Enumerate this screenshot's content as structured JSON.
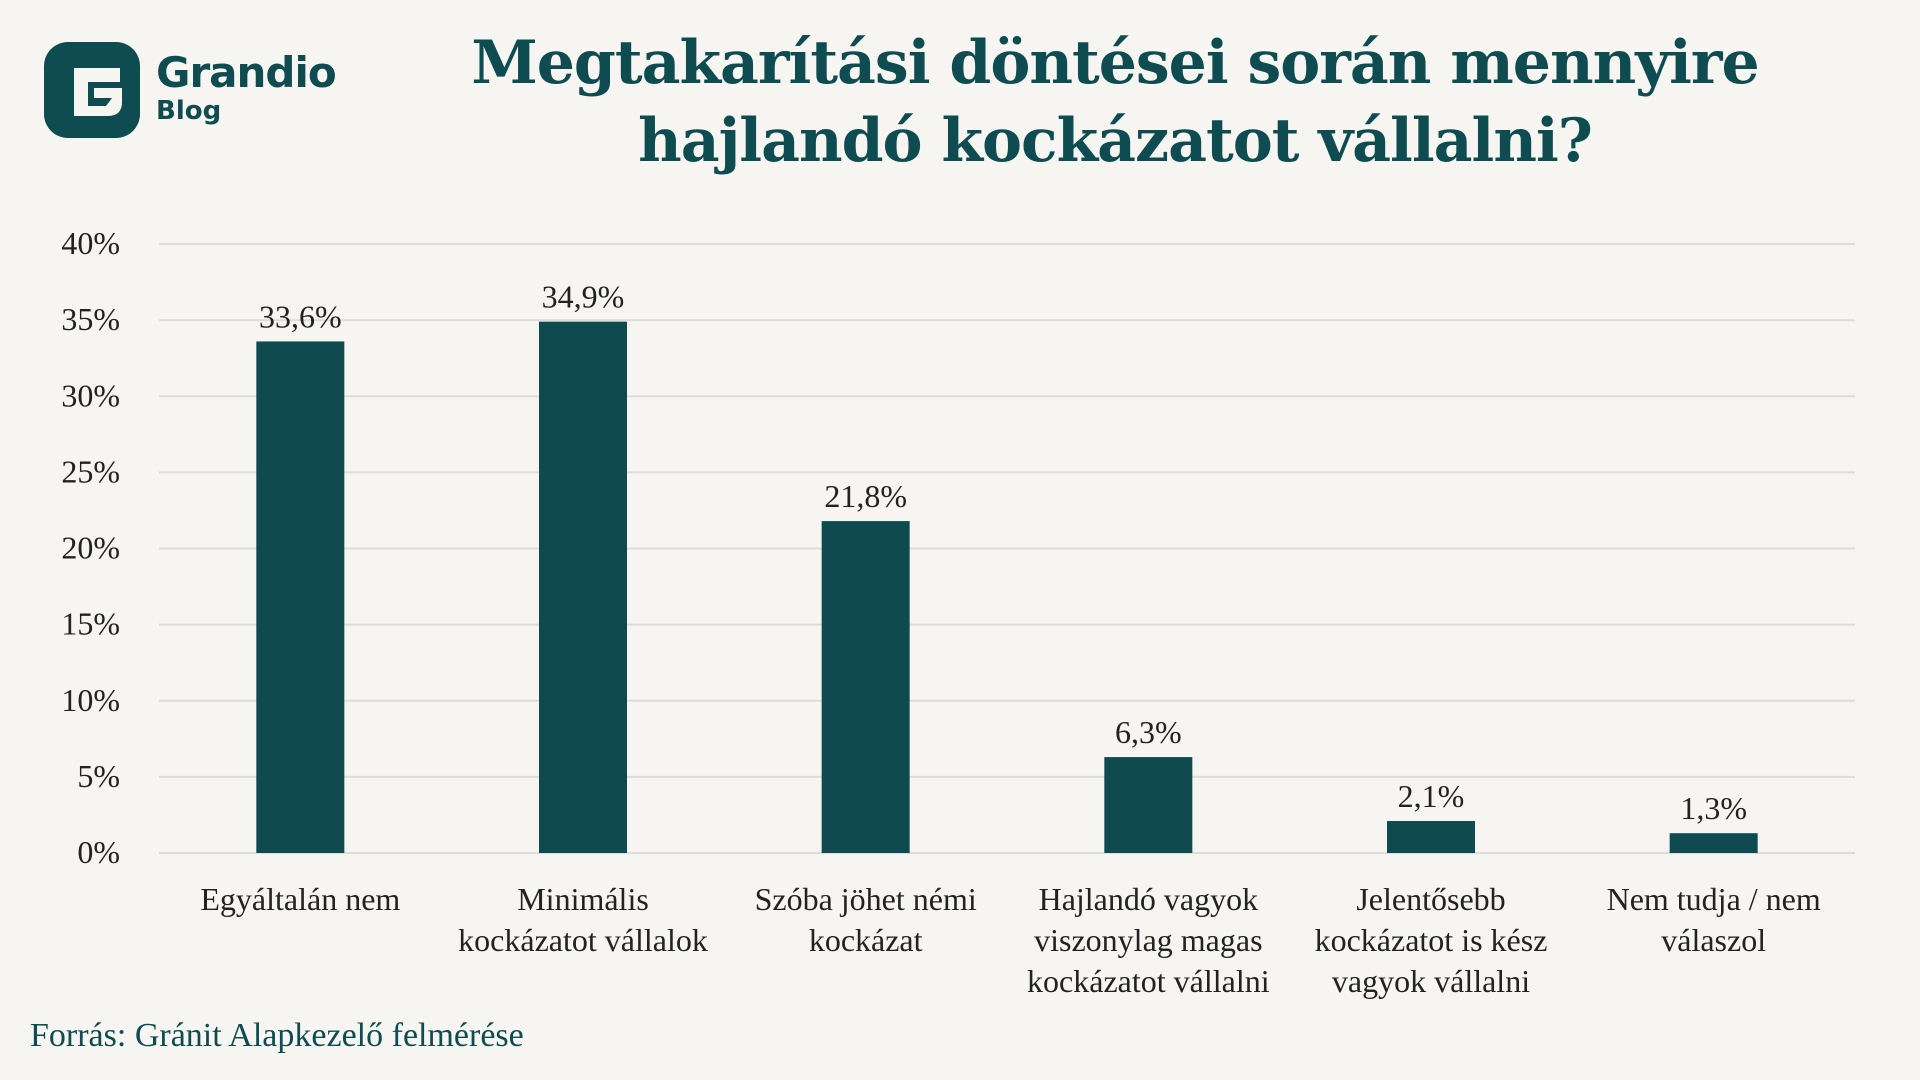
{
  "brand": {
    "name": "Grandio",
    "sub": "Blog"
  },
  "source": "Forrás: Gránit Alapkezelő felmérése",
  "colors": {
    "bar": "#0e4a50",
    "grid": "#dcdcd8",
    "text": "#222222",
    "title": "#0f4c52"
  },
  "chart_data": {
    "type": "bar",
    "title": "Megtakarítási döntései során mennyire hajlandó kockázatot vállalni?",
    "title_lines": [
      "Megtakarítási döntései során mennyire",
      "hajlandó kockázatot vállalni?"
    ],
    "categories": [
      [
        "Egyáltalán nem"
      ],
      [
        "Minimális",
        "kockázatot vállalok"
      ],
      [
        "Szóba jöhet némi",
        "kockázat"
      ],
      [
        "Hajlandó vagyok",
        "viszonylag magas",
        "kockázatot vállalni"
      ],
      [
        "Jelentősebb",
        "kockázatot is kész",
        "vagyok vállalni"
      ],
      [
        "Nem tudja / nem",
        "válaszol"
      ]
    ],
    "values": [
      33.6,
      34.9,
      21.8,
      6.3,
      2.1,
      1.3
    ],
    "value_labels": [
      "33,6%",
      "34,9%",
      "21,8%",
      "6,3%",
      "2,1%",
      "1,3%"
    ],
    "yticks": [
      0,
      5,
      10,
      15,
      20,
      25,
      30,
      35,
      40
    ],
    "ytick_labels": [
      "0%",
      "5%",
      "10%",
      "15%",
      "20%",
      "25%",
      "30%",
      "35%",
      "40%"
    ],
    "ylim": [
      0,
      40
    ],
    "xlabel": "",
    "ylabel": "",
    "grid": true,
    "legend": "none"
  }
}
